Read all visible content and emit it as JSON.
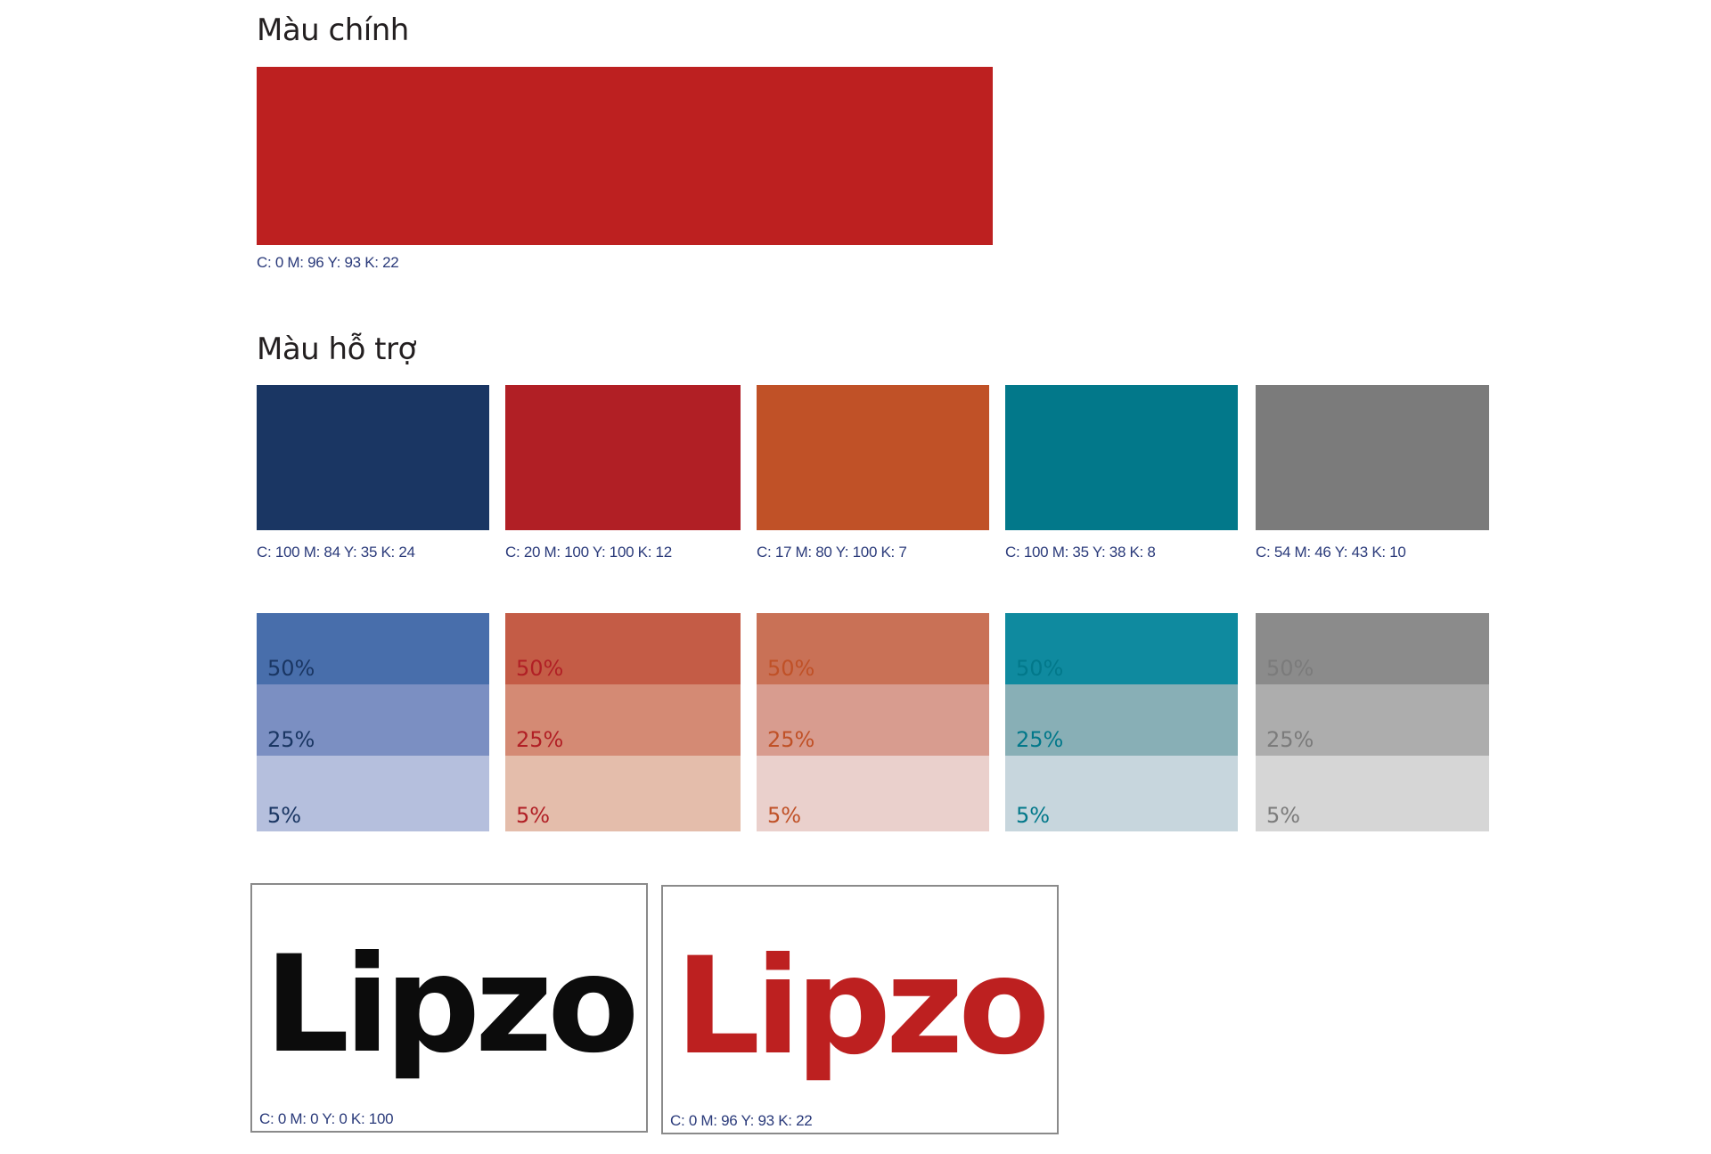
{
  "primary": {
    "heading": "Màu chính",
    "color": "#bd2020",
    "cmyk": "C: 0  M: 96  Y: 93  K: 22"
  },
  "supporting": {
    "heading": "Màu hỗ trợ",
    "swatches": [
      {
        "color": "#1a3663",
        "cmyk": "C: 100  M: 84  Y: 35  K: 24"
      },
      {
        "color": "#b11f25",
        "cmyk": "C: 20  M: 100  Y: 100  K: 12"
      },
      {
        "color": "#c05127",
        "cmyk": "C: 17  M: 80  Y: 100  K: 7"
      },
      {
        "color": "#02788a",
        "cmyk": "C: 100  M: 35  Y: 38  K: 8"
      },
      {
        "color": "#7b7b7b",
        "cmyk": "C: 54  M: 46  Y: 43  K: 10"
      }
    ]
  },
  "tints": [
    {
      "text_color": "#1a3663",
      "steps": [
        {
          "label": "50%",
          "color": "#486eab"
        },
        {
          "label": "25%",
          "color": "#7b8fc2"
        },
        {
          "label": "5%",
          "color": "#b5bfdd"
        }
      ]
    },
    {
      "text_color": "#b11f25",
      "steps": [
        {
          "label": "50%",
          "color": "#c45c46"
        },
        {
          "label": "25%",
          "color": "#d48a74"
        },
        {
          "label": "5%",
          "color": "#e4bdab"
        }
      ]
    },
    {
      "text_color": "#c05127",
      "steps": [
        {
          "label": "50%",
          "color": "#c97156"
        },
        {
          "label": "25%",
          "color": "#d89c8f"
        },
        {
          "label": "5%",
          "color": "#ead0cc"
        }
      ]
    },
    {
      "text_color": "#02788a",
      "steps": [
        {
          "label": "50%",
          "color": "#0f8a9f"
        },
        {
          "label": "25%",
          "color": "#88afb6"
        },
        {
          "label": "5%",
          "color": "#c7d6dd"
        }
      ]
    },
    {
      "text_color": "#7b7b7b",
      "steps": [
        {
          "label": "50%",
          "color": "#8b8b8b"
        },
        {
          "label": "25%",
          "color": "#adadad"
        },
        {
          "label": "5%",
          "color": "#d6d6d6"
        }
      ]
    }
  ],
  "logos": [
    {
      "wordmark": "Lipzo",
      "color": "#0c0c0c",
      "cmyk": "C: 0  M: 0  Y: 0  K: 100"
    },
    {
      "wordmark": "Lipzo",
      "color": "#bd2020",
      "cmyk": "C: 0  M: 96  Y: 93  K: 22"
    }
  ]
}
